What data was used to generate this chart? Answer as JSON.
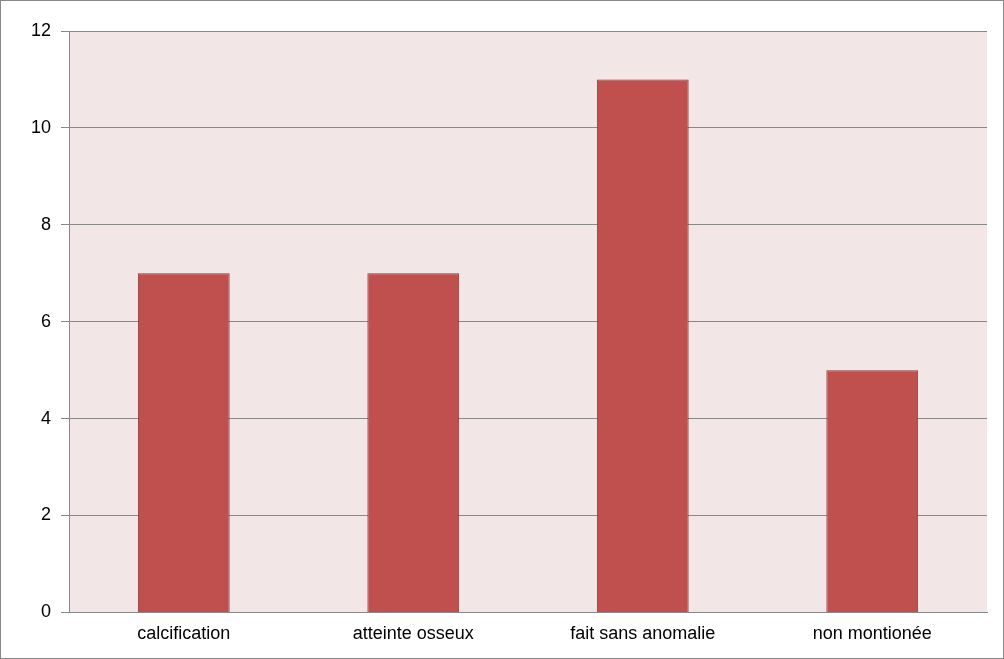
{
  "chart_data": {
    "type": "bar",
    "categories": [
      "calcification",
      "atteinte osseux",
      "fait sans anomalie",
      "non montionée"
    ],
    "values": [
      7,
      7,
      11,
      5
    ],
    "color": "#c0504d",
    "ylim": [
      0,
      12
    ],
    "yticks": [
      0,
      2,
      4,
      6,
      8,
      10,
      12
    ],
    "grid": "y"
  }
}
